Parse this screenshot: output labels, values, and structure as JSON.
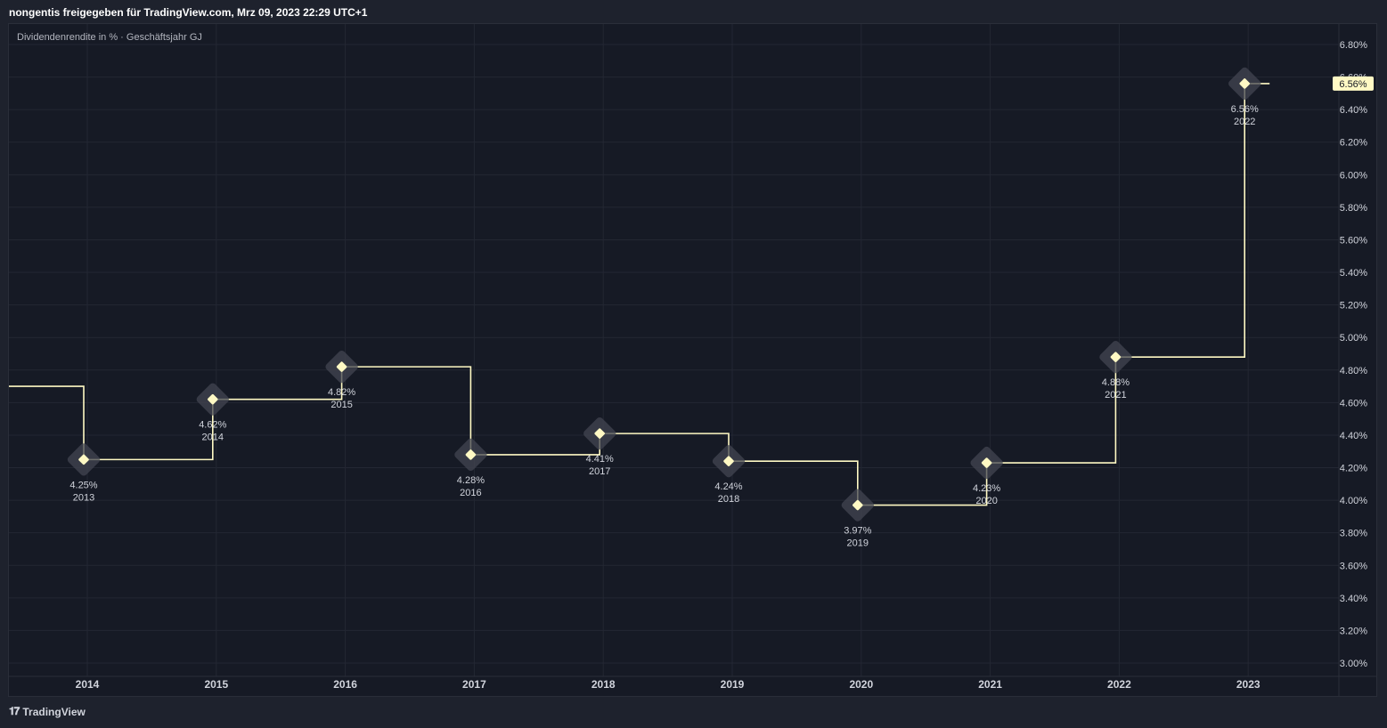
{
  "header": {
    "text": "nongentis freigegeben für TradingView.com, Mrz 09, 2023 22:29 UTC+1"
  },
  "footer": {
    "logo_icon": "tradingview-logo-icon",
    "logo_glyph": "𝟏𝟕",
    "brand": "TradingView"
  },
  "colors": {
    "line": "#fff9c4",
    "background": "#161a25",
    "grid": "#232733",
    "text": "#d1d4dc",
    "last_value_bg": "#fff9c4",
    "marker_bg": "#434651"
  },
  "chart_data": {
    "type": "line",
    "step": true,
    "title": "Dividendenrendite in % · Geschäftsjahr GJ",
    "x_ticks": [
      "2014",
      "2015",
      "2016",
      "2017",
      "2018",
      "2019",
      "2020",
      "2021",
      "2022",
      "2023"
    ],
    "y_ticks": [
      "6.80%",
      "6.60%",
      "6.40%",
      "6.20%",
      "6.00%",
      "5.80%",
      "5.60%",
      "5.40%",
      "5.20%",
      "5.00%",
      "4.80%",
      "4.60%",
      "4.40%",
      "4.20%",
      "4.00%",
      "3.80%",
      "3.60%",
      "3.40%",
      "3.20%",
      "3.00%"
    ],
    "ylim": [
      3.0,
      6.8
    ],
    "grid": true,
    "prior_value": 4.7,
    "points": [
      {
        "fy": "2013",
        "value": 4.25,
        "label": "4.25%"
      },
      {
        "fy": "2014",
        "value": 4.62,
        "label": "4.62%"
      },
      {
        "fy": "2015",
        "value": 4.82,
        "label": "4.82%"
      },
      {
        "fy": "2016",
        "value": 4.28,
        "label": "4.28%"
      },
      {
        "fy": "2017",
        "value": 4.41,
        "label": "4.41%"
      },
      {
        "fy": "2018",
        "value": 4.24,
        "label": "4.24%"
      },
      {
        "fy": "2019",
        "value": 3.97,
        "label": "3.97%"
      },
      {
        "fy": "2020",
        "value": 4.23,
        "label": "4.23%"
      },
      {
        "fy": "2021",
        "value": 4.88,
        "label": "4.88%"
      },
      {
        "fy": "2022",
        "value": 6.56,
        "label": "6.56%"
      }
    ],
    "last_value_label": "6.56%"
  }
}
